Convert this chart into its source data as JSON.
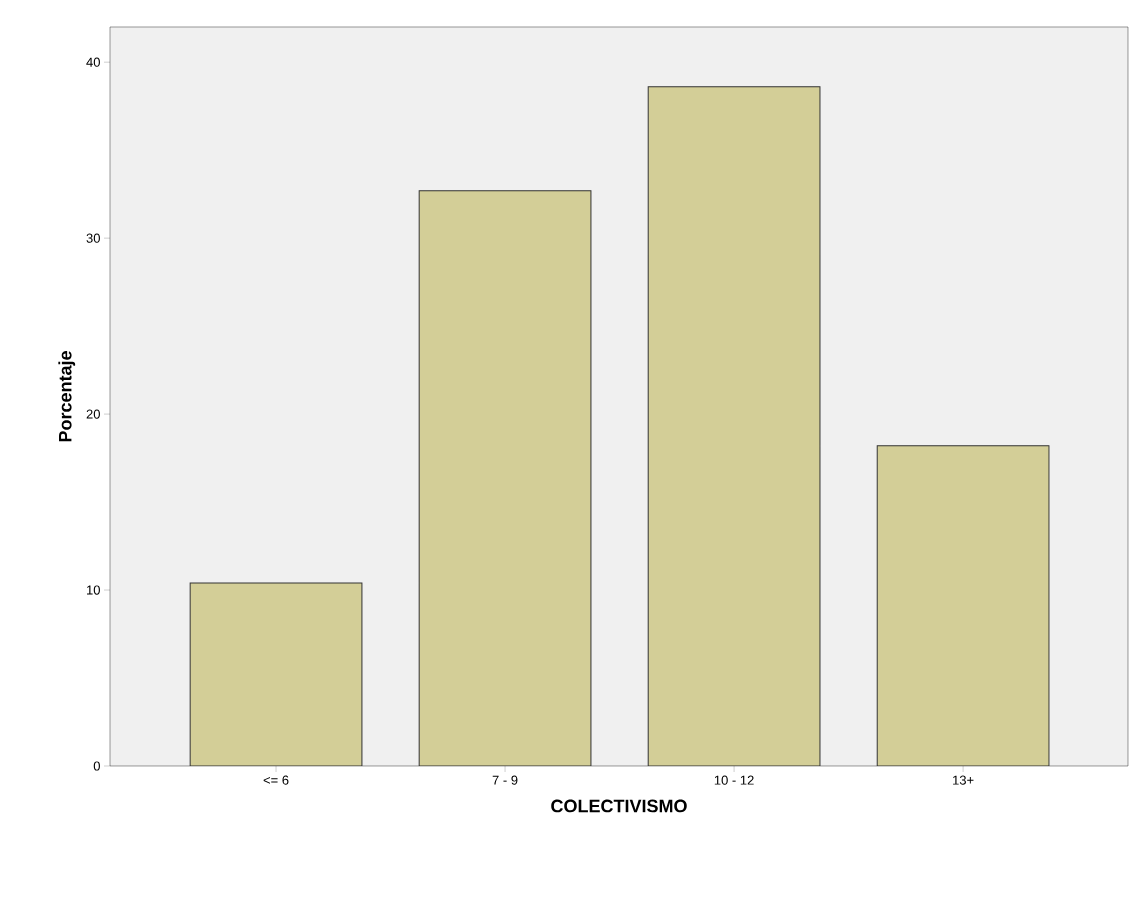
{
  "chart_data": {
    "type": "bar",
    "xlabel": "COLECTIVISMO",
    "ylabel": "Porcentaje",
    "categories": [
      "<= 6",
      "7 - 9",
      "10 - 12",
      "13+"
    ],
    "values": [
      10.4,
      32.7,
      38.6,
      18.2
    ],
    "color": "#d3ce97",
    "ylim": [
      0,
      42
    ],
    "yticks": [
      0,
      10,
      20,
      30,
      40
    ],
    "grid": false
  }
}
